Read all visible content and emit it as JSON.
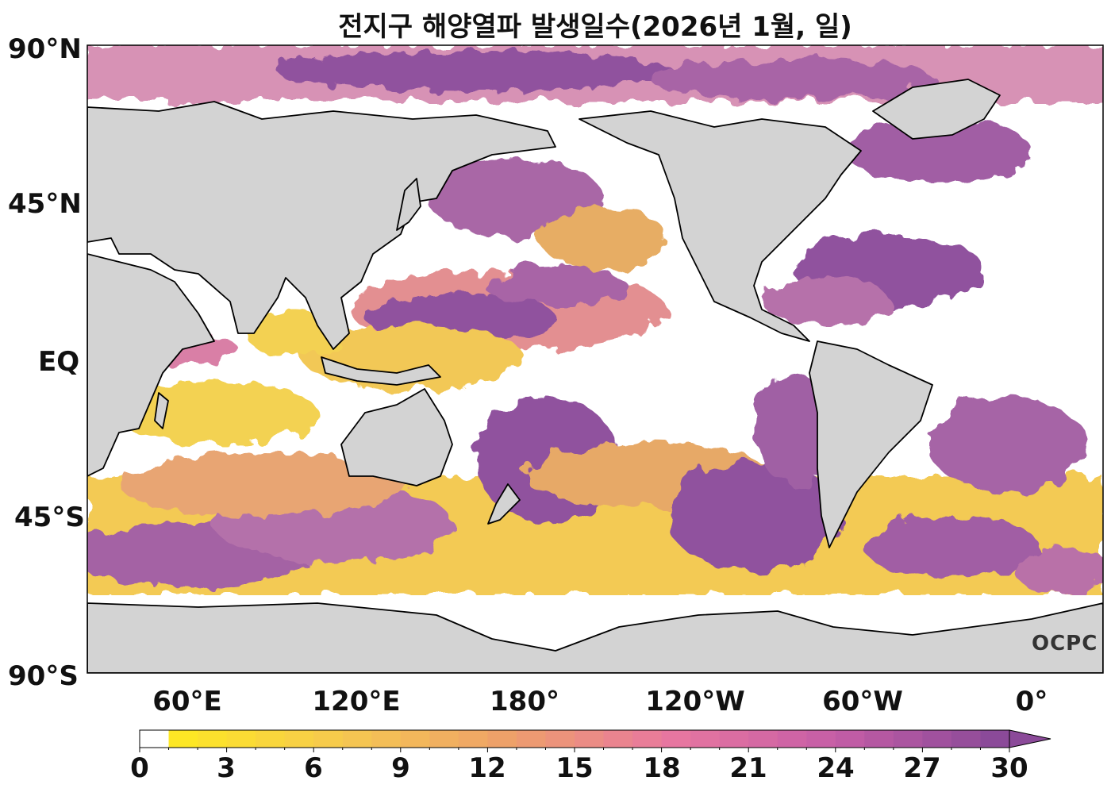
{
  "title": "전지구 해양열파 발생일수(2026년 1월, 일)",
  "lat_labels": [
    "90°N",
    "45°N",
    "EQ",
    "45°S",
    "90°S"
  ],
  "lon_labels": [
    "60°E",
    "120°E",
    "180°",
    "120°W",
    "60°W",
    "0°"
  ],
  "colorbar": {
    "ticks": [
      "0",
      "3",
      "6",
      "9",
      "12",
      "15",
      "18",
      "21",
      "24",
      "27",
      "30"
    ],
    "min": 0,
    "max": 30,
    "extend": "max",
    "colors": [
      "#ffffff",
      "#fde725",
      "#f6c850",
      "#eea06a",
      "#e877a0",
      "#c65ea6",
      "#8b4a99"
    ]
  },
  "logo": "OCPC",
  "colors": {
    "land": "#d3d3d3",
    "ocean": "#ffffff",
    "coast": "#000000"
  }
}
